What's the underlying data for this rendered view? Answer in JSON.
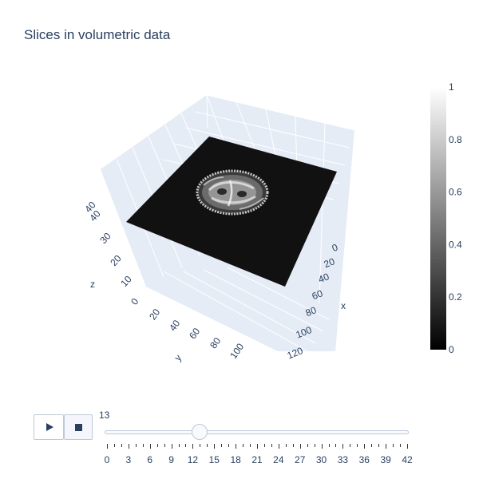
{
  "title": "Slices in volumetric data",
  "scene": {
    "z_axis": {
      "title": "z",
      "ticks": [
        "10",
        "20",
        "30",
        "40"
      ]
    },
    "x_axis": {
      "title": "x",
      "ticks": [
        "0",
        "20",
        "40",
        "60",
        "80",
        "100",
        "120"
      ]
    },
    "y_axis": {
      "title": "y",
      "ticks": [
        "0",
        "20",
        "40",
        "60",
        "80",
        "100"
      ]
    },
    "surface_colors": {
      "slab": "#111111",
      "pane": "#e5ecf6",
      "grid": "#ffffff"
    }
  },
  "colorbar": {
    "colorscale": "Gray",
    "range": [
      0,
      1
    ],
    "ticks": [
      "0",
      "0.2",
      "0.4",
      "0.6",
      "0.8",
      "1"
    ]
  },
  "animation": {
    "play_icon": "play-icon",
    "stop_icon": "stop-icon",
    "current_value": "13",
    "slider": {
      "min": 0,
      "max": 42,
      "value": 13,
      "labels": [
        "0",
        "3",
        "6",
        "9",
        "12",
        "15",
        "18",
        "21",
        "24",
        "27",
        "30",
        "33",
        "36",
        "39",
        "42"
      ]
    }
  }
}
